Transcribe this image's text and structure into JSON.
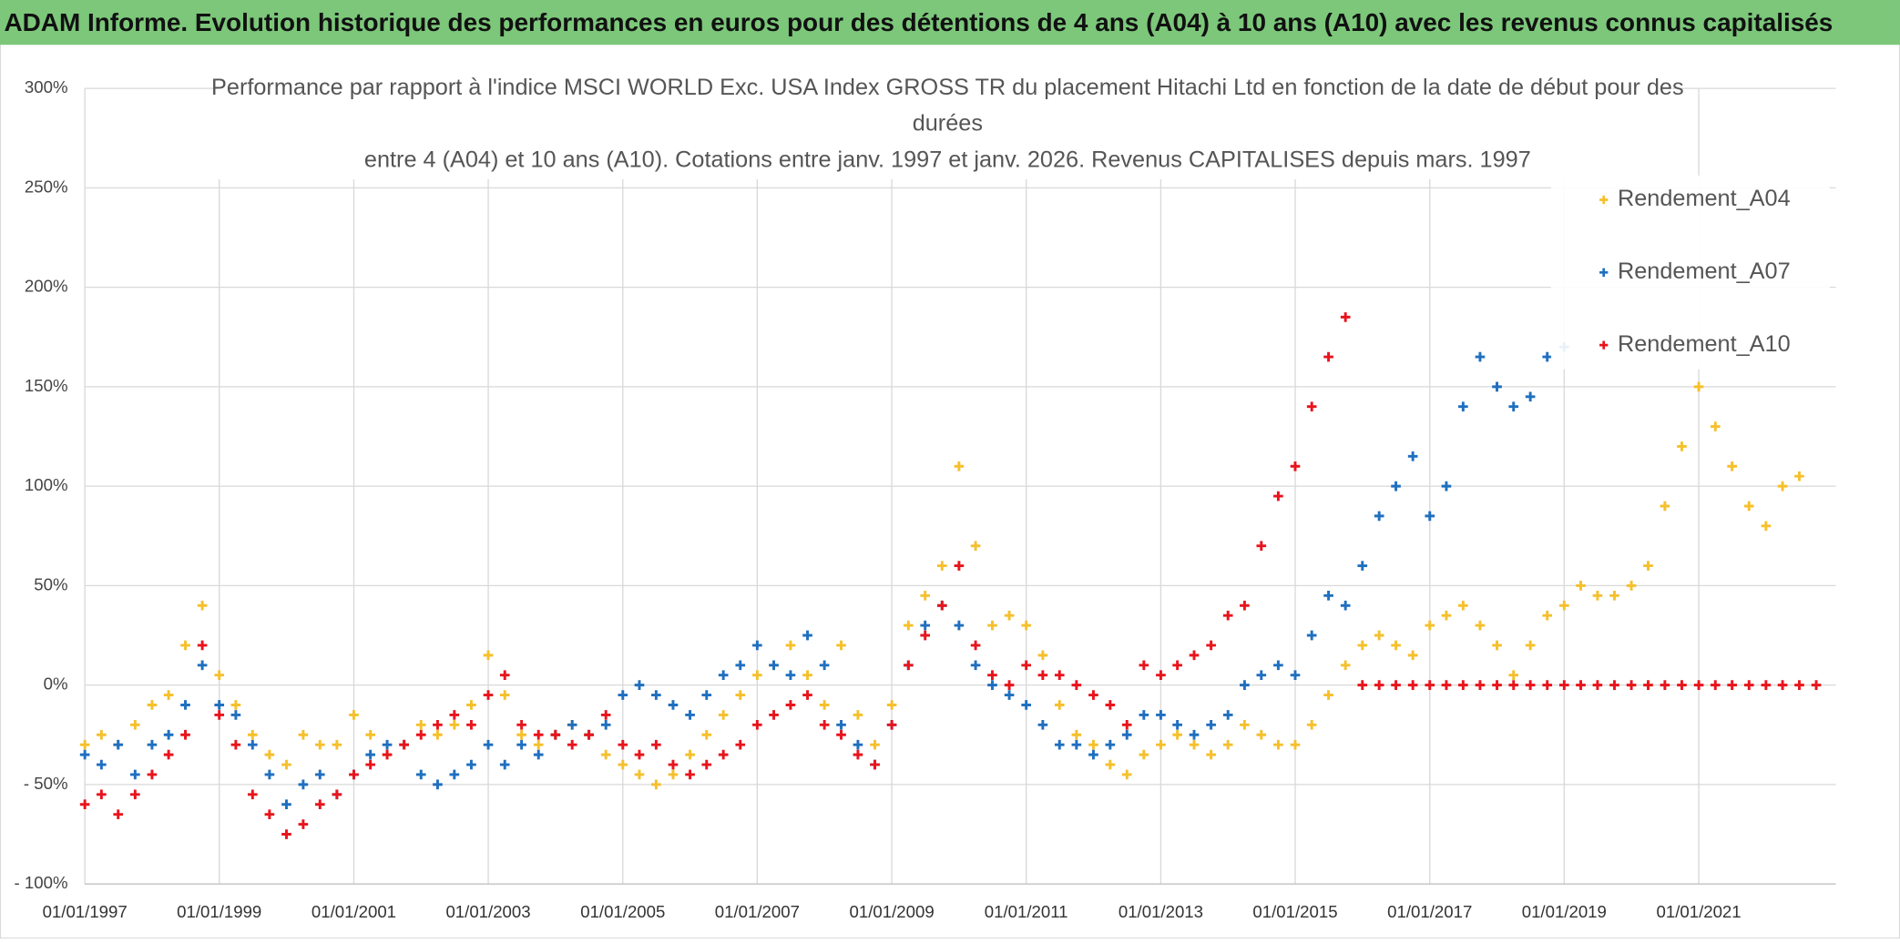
{
  "chart_data": {
    "type": "scatter",
    "title": "ADAM Informe. Evolution historique des performances en euros pour des détentions de 4 ans (A04) à 10 ans (A10) avec les revenus connus capitalisés",
    "subtitle": [
      "Performance par rapport à l'indice MSCI WORLD Exc. USA Index GROSS TR  du placement Hitachi Ltd en fonction de la date de début pour des",
      "durées",
      "entre 4 (A04) et 10 ans (A10). Cotations entre janv. 1997 et janv. 2026. Revenus CAPITALISES depuis mars. 1997"
    ],
    "x": [
      "01/01/1997",
      "01/04/1997",
      "01/07/1997",
      "01/10/1997",
      "01/01/1998",
      "01/04/1998",
      "01/07/1998",
      "01/10/1998",
      "01/01/1999",
      "01/04/1999",
      "01/07/1999",
      "01/10/1999",
      "01/01/2000",
      "01/04/2000",
      "01/07/2000",
      "01/10/2000",
      "01/01/2001",
      "01/04/2001",
      "01/07/2001",
      "01/10/2001",
      "01/01/2002",
      "01/04/2002",
      "01/07/2002",
      "01/10/2002",
      "01/01/2003",
      "01/04/2003",
      "01/07/2003",
      "01/10/2003",
      "01/01/2004",
      "01/04/2004",
      "01/07/2004",
      "01/10/2004",
      "01/01/2005",
      "01/04/2005",
      "01/07/2005",
      "01/10/2005",
      "01/01/2006",
      "01/04/2006",
      "01/07/2006",
      "01/10/2006",
      "01/01/2007",
      "01/04/2007",
      "01/07/2007",
      "01/10/2007",
      "01/01/2008",
      "01/04/2008",
      "01/07/2008",
      "01/10/2008",
      "01/01/2009",
      "01/04/2009",
      "01/07/2009",
      "01/10/2009",
      "01/01/2010",
      "01/04/2010",
      "01/07/2010",
      "01/10/2010",
      "01/01/2011",
      "01/04/2011",
      "01/07/2011",
      "01/10/2011",
      "01/01/2012",
      "01/04/2012",
      "01/07/2012",
      "01/10/2012",
      "01/01/2013",
      "01/04/2013",
      "01/07/2013",
      "01/10/2013",
      "01/01/2014",
      "01/04/2014",
      "01/07/2014",
      "01/10/2014",
      "01/01/2015",
      "01/04/2015",
      "01/07/2015",
      "01/10/2015",
      "01/01/2016",
      "01/04/2016",
      "01/07/2016",
      "01/10/2016",
      "01/01/2017",
      "01/04/2017",
      "01/07/2017",
      "01/10/2017",
      "01/01/2018",
      "01/04/2018",
      "01/07/2018",
      "01/10/2018",
      "01/01/2019",
      "01/04/2019",
      "01/07/2019",
      "01/10/2019",
      "01/01/2020",
      "01/04/2020",
      "01/07/2020",
      "01/10/2020",
      "01/01/2021",
      "01/04/2021",
      "01/07/2021",
      "01/10/2021",
      "01/01/2022",
      "01/04/2022",
      "01/07/2022",
      "01/10/2022"
    ],
    "series": [
      {
        "name": "Rendement_A04",
        "color": "#f5c02c",
        "values": [
          -30,
          -25,
          -30,
          -20,
          -10,
          -5,
          20,
          40,
          5,
          -10,
          -25,
          -35,
          -40,
          -25,
          -30,
          -30,
          -15,
          -25,
          -35,
          -30,
          -20,
          -25,
          -20,
          -10,
          15,
          -5,
          -25,
          -30,
          -25,
          -20,
          -25,
          -35,
          -40,
          -45,
          -50,
          -45,
          -35,
          -25,
          -15,
          -5,
          5,
          10,
          20,
          5,
          -10,
          20,
          -15,
          -30,
          -10,
          30,
          45,
          60,
          110,
          70,
          30,
          35,
          30,
          15,
          -10,
          -25,
          -30,
          -40,
          -45,
          -35,
          -30,
          -25,
          -30,
          -35,
          -30,
          -20,
          -25,
          -30,
          -30,
          -20,
          -5,
          10,
          20,
          25,
          20,
          15,
          30,
          35,
          40,
          30,
          20,
          5,
          20,
          35,
          40,
          50,
          45,
          45,
          50,
          60,
          90,
          120,
          150,
          130,
          110,
          90,
          80,
          100,
          105,
          null
        ]
      },
      {
        "name": "Rendement_A07",
        "color": "#1f6fbf",
        "values": [
          -35,
          -40,
          -30,
          -45,
          -30,
          -25,
          -10,
          10,
          -10,
          -15,
          -30,
          -45,
          -60,
          -50,
          -45,
          -55,
          -45,
          -35,
          -30,
          -30,
          -45,
          -50,
          -45,
          -40,
          -30,
          -40,
          -30,
          -35,
          -25,
          -20,
          -25,
          -20,
          -5,
          0,
          -5,
          -10,
          -15,
          -5,
          5,
          10,
          20,
          10,
          5,
          25,
          10,
          -20,
          -30,
          -40,
          -20,
          10,
          30,
          40,
          30,
          10,
          0,
          -5,
          -10,
          -20,
          -30,
          -30,
          -35,
          -30,
          -25,
          -15,
          -15,
          -20,
          -25,
          -20,
          -15,
          0,
          5,
          10,
          5,
          25,
          45,
          40,
          60,
          85,
          100,
          115,
          85,
          100,
          140,
          165,
          150,
          140,
          145,
          165,
          170,
          null,
          null,
          null,
          null,
          null,
          null,
          null,
          null,
          null,
          null,
          null,
          null,
          null,
          null,
          null
        ]
      },
      {
        "name": "Rendement_A10",
        "color": "#e8141c",
        "values": [
          -60,
          -55,
          -65,
          -55,
          -45,
          -35,
          -25,
          20,
          -15,
          -30,
          -55,
          -65,
          -75,
          -70,
          -60,
          -55,
          -45,
          -40,
          -35,
          -30,
          -25,
          -20,
          -15,
          -20,
          -5,
          5,
          -20,
          -25,
          -25,
          -30,
          -25,
          -15,
          -30,
          -35,
          -30,
          -40,
          -45,
          -40,
          -35,
          -30,
          -20,
          -15,
          -10,
          -5,
          -20,
          -25,
          -35,
          -40,
          -20,
          10,
          25,
          40,
          60,
          20,
          5,
          0,
          10,
          5,
          5,
          0,
          -5,
          -10,
          -20,
          10,
          5,
          10,
          15,
          20,
          35,
          40,
          70,
          95,
          110,
          140,
          165,
          185,
          0,
          0,
          0,
          0,
          0,
          0,
          0,
          0,
          0,
          0,
          0,
          0,
          0,
          0,
          0,
          0,
          0,
          0,
          0,
          0,
          0,
          0,
          0,
          0,
          0,
          0,
          0,
          0
        ]
      }
    ],
    "xlim": [
      "01/01/1997",
      "15/01/2023"
    ],
    "xticks": [
      "01/01/1997",
      "01/01/1999",
      "01/01/2001",
      "01/01/2003",
      "01/01/2005",
      "01/01/2007",
      "01/01/2009",
      "01/01/2011",
      "01/01/2013",
      "01/01/2015",
      "01/01/2017",
      "01/01/2019",
      "01/01/2021"
    ],
    "ylim": [
      -100,
      300
    ],
    "yticks": [
      {
        "value": -100,
        "label": "- 100%"
      },
      {
        "value": -50,
        "label": "- 50%"
      },
      {
        "value": 0,
        "label": "0%"
      },
      {
        "value": 50,
        "label": "50%"
      },
      {
        "value": 100,
        "label": "100%"
      },
      {
        "value": 150,
        "label": "150%"
      },
      {
        "value": 200,
        "label": "200%"
      },
      {
        "value": 250,
        "label": "250%"
      },
      {
        "value": 300,
        "label": "300%"
      }
    ],
    "grid": true,
    "legend": "upper right"
  }
}
